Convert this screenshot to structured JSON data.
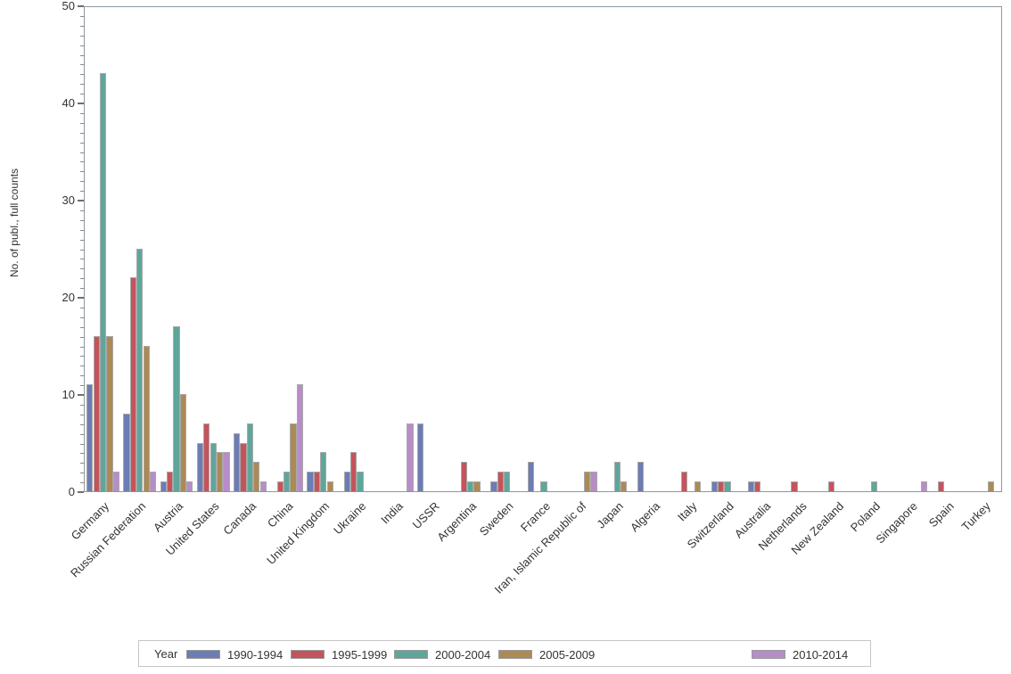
{
  "chart_data": {
    "type": "bar",
    "title": "",
    "ylabel": "No. of publ., full counts",
    "xlabel": "",
    "ylim": [
      0,
      50
    ],
    "y_ticks": [
      0,
      10,
      20,
      30,
      40,
      50
    ],
    "y_minor_step": 1,
    "grid": false,
    "legend_position": "bottom",
    "legend_title": "Year",
    "categories": [
      "Germany",
      "Russian Federation",
      "Austria",
      "United States",
      "Canada",
      "China",
      "United Kingdom",
      "Ukraine",
      "India",
      "USSR",
      "Argentina",
      "Sweden",
      "France",
      "Iran, Islamic Republic of",
      "Japan",
      "Algeria",
      "Italy",
      "Switzerland",
      "Australia",
      "Netherlands",
      "New Zealand",
      "Poland",
      "Singapore",
      "Spain",
      "Turkey"
    ],
    "series": [
      {
        "name": "1990-1994",
        "color": "#6c7cb4",
        "values": [
          11,
          8,
          1,
          5,
          6,
          0,
          2,
          2,
          0,
          7,
          0,
          1,
          3,
          0,
          0,
          3,
          0,
          1,
          1,
          0,
          0,
          0,
          0,
          0,
          0
        ]
      },
      {
        "name": "1995-1999",
        "color": "#c4545c",
        "values": [
          16,
          22,
          2,
          7,
          5,
          1,
          2,
          4,
          0,
          0,
          3,
          2,
          0,
          0,
          0,
          0,
          2,
          1,
          1,
          1,
          1,
          0,
          0,
          1,
          0
        ]
      },
      {
        "name": "2000-2004",
        "color": "#5fa69a",
        "values": [
          43,
          25,
          17,
          5,
          7,
          2,
          4,
          2,
          0,
          0,
          1,
          2,
          1,
          0,
          3,
          0,
          0,
          1,
          0,
          0,
          0,
          1,
          0,
          0,
          0
        ]
      },
      {
        "name": "2005-2009",
        "color": "#ac8a55",
        "values": [
          16,
          15,
          10,
          4,
          3,
          7,
          1,
          0,
          0,
          0,
          1,
          0,
          0,
          2,
          1,
          0,
          1,
          0,
          0,
          0,
          0,
          0,
          0,
          0,
          1
        ]
      },
      {
        "name": "2010-2014",
        "color": "#b78dc8",
        "values": [
          2,
          2,
          1,
          4,
          1,
          11,
          0,
          0,
          7,
          0,
          0,
          0,
          0,
          2,
          0,
          0,
          0,
          0,
          0,
          0,
          0,
          0,
          1,
          0,
          0
        ]
      }
    ],
    "colors": {
      "axis_border": "#8e97a0",
      "bar_outline": "#a8a8a8",
      "text": "#333333",
      "background": "#ffffff"
    }
  }
}
